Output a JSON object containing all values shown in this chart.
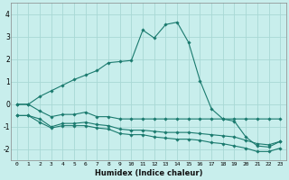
{
  "xlabel": "Humidex (Indice chaleur)",
  "background_color": "#c8eeec",
  "grid_color": "#a8d8d5",
  "line_color": "#1a7a6e",
  "x_values": [
    0,
    1,
    2,
    3,
    4,
    5,
    6,
    7,
    8,
    9,
    10,
    11,
    12,
    13,
    14,
    15,
    16,
    17,
    18,
    19,
    20,
    21,
    22,
    23
  ],
  "series1": [
    0.0,
    0.0,
    0.35,
    0.6,
    0.85,
    1.1,
    1.3,
    1.5,
    1.85,
    1.9,
    1.95,
    3.3,
    2.95,
    3.55,
    3.65,
    2.75,
    1.05,
    -0.2,
    -0.65,
    -0.75,
    -1.45,
    -1.85,
    -1.9,
    -1.65
  ],
  "series2": [
    0.0,
    0.0,
    -0.3,
    -0.55,
    -0.45,
    -0.45,
    -0.35,
    -0.55,
    -0.55,
    -0.65,
    -0.65,
    -0.65,
    -0.65,
    -0.65,
    -0.65,
    -0.65,
    -0.65,
    -0.65,
    -0.65,
    -0.65,
    -0.65,
    -0.65,
    -0.65,
    -0.65
  ],
  "series3": [
    -0.5,
    -0.5,
    -0.65,
    -1.0,
    -0.85,
    -0.85,
    -0.8,
    -0.9,
    -0.95,
    -1.1,
    -1.15,
    -1.15,
    -1.2,
    -1.25,
    -1.25,
    -1.25,
    -1.3,
    -1.35,
    -1.4,
    -1.45,
    -1.6,
    -1.75,
    -1.8,
    -1.65
  ],
  "series4": [
    -0.5,
    -0.5,
    -0.8,
    -1.05,
    -0.95,
    -0.95,
    -0.95,
    -1.05,
    -1.1,
    -1.3,
    -1.35,
    -1.35,
    -1.45,
    -1.5,
    -1.55,
    -1.55,
    -1.6,
    -1.7,
    -1.75,
    -1.85,
    -1.95,
    -2.1,
    -2.1,
    -1.95
  ],
  "ylim": [
    -2.5,
    4.5
  ],
  "yticks": [
    -2,
    -1,
    0,
    1,
    2,
    3,
    4
  ],
  "xlim": [
    -0.5,
    23.5
  ]
}
